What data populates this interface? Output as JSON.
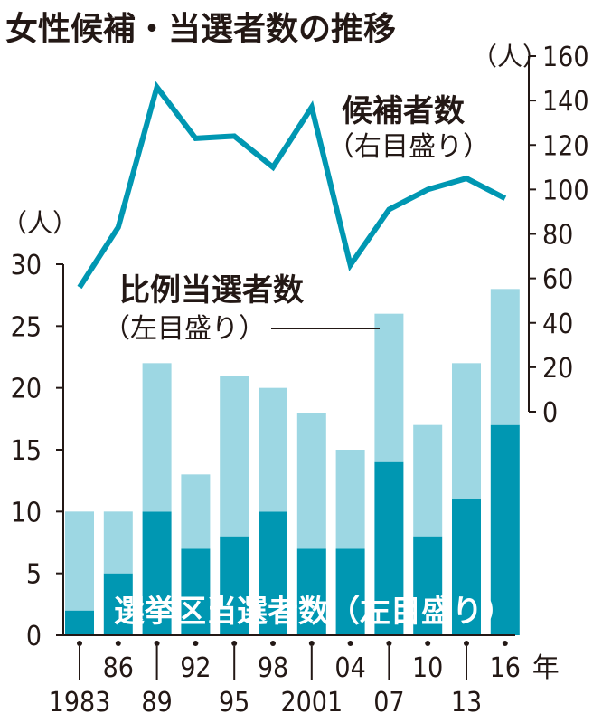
{
  "chart_data": {
    "type": "bar",
    "title": "女性候補・当選者数の推移",
    "categories": [
      "1983",
      "86",
      "89",
      "92",
      "95",
      "98",
      "2001",
      "04",
      "07",
      "10",
      "13",
      "16"
    ],
    "year_suffix": "年",
    "series": [
      {
        "name": "選挙区当選者数（左目盛り）",
        "kind": "bar",
        "axis": "left",
        "color": "#0097b2",
        "values": [
          2,
          5,
          10,
          7,
          8,
          10,
          7,
          7,
          14,
          8,
          11,
          17
        ]
      },
      {
        "name": "比例当選者数（左目盛り）",
        "kind": "bar",
        "axis": "left",
        "color": "#9dd7e3",
        "values": [
          8,
          5,
          12,
          6,
          13,
          10,
          11,
          8,
          12,
          9,
          11,
          11
        ]
      },
      {
        "name": "候補者数（右目盛り）",
        "kind": "line",
        "axis": "right",
        "color": "#0097b2",
        "values": [
          56,
          83,
          146,
          123,
          124,
          110,
          137,
          66,
          91,
          100,
          105,
          96
        ]
      }
    ],
    "stacked": true,
    "y_left": {
      "unit": "（人）",
      "ylim": [
        0,
        30
      ],
      "ticks": [
        0,
        5,
        10,
        15,
        20,
        25,
        30
      ]
    },
    "y_right": {
      "unit": "（人）",
      "ylim": [
        0,
        160
      ],
      "ticks": [
        0,
        20,
        40,
        60,
        80,
        100,
        120,
        140,
        160
      ]
    },
    "labels": {
      "line_name": "候補者数",
      "line_axis_note": "（右目盛り）",
      "pr_name": "比例当選者数",
      "pr_axis_note": "（左目盛り）",
      "district_label": "選挙区当選者数（左目盛り）"
    }
  }
}
